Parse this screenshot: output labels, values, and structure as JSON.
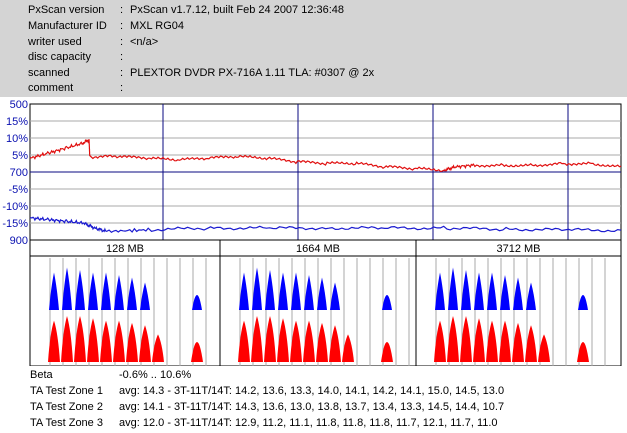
{
  "info": {
    "rows": [
      {
        "key": "PxScan version",
        "value": "PxScan v1.7.12, built Feb 24 2007 12:36:48"
      },
      {
        "key": "Manufacturer ID",
        "value": "MXL RG04"
      },
      {
        "key": "writer used",
        "value": "<n/a>"
      },
      {
        "key": "disc capacity",
        "value": ""
      },
      {
        "key": "scanned",
        "value": "PLEXTOR DVDR PX-716A 1.11 TLA: #0307 @ 2x"
      },
      {
        "key": "comment",
        "value": ""
      }
    ]
  },
  "colors": {
    "beta": "#e01010",
    "jitter": "#1a1ad0",
    "grid_major": "#0a0a80",
    "grid_minor": "#a8a8a8",
    "ta_blue": "#0000ff",
    "ta_red": "#ff0000"
  },
  "chart_data": [
    {
      "type": "line",
      "y_ticks_left": [
        "500",
        "15%",
        "10%",
        "5%",
        "700",
        "-5%",
        "-10%",
        "-15%",
        "900"
      ],
      "ylim_percent": [
        -20,
        20
      ],
      "zone_labels": [
        "128 MB",
        "1664 MB",
        "3712 MB"
      ],
      "series": [
        {
          "color": "red",
          "x": [
            0,
            0.03,
            0.06,
            0.09,
            0.1,
            0.101,
            0.15,
            0.2,
            0.25,
            0.3,
            0.35,
            0.4,
            0.45,
            0.5,
            0.55,
            0.6,
            0.65,
            0.7,
            0.72,
            0.75,
            0.8,
            0.85,
            0.9,
            0.95,
            1.0
          ],
          "values": [
            4,
            5.5,
            7,
            8.5,
            9.5,
            4.5,
            4.5,
            4,
            3.5,
            4,
            4.5,
            4,
            3,
            2.5,
            2.5,
            1.5,
            1,
            0.5,
            1.5,
            2,
            2,
            2,
            2.5,
            2.5,
            1.5
          ]
        },
        {
          "color": "blue",
          "x": [
            0,
            0.03,
            0.06,
            0.09,
            0.11,
            0.13,
            0.2,
            0.3,
            0.4,
            0.5,
            0.6,
            0.7,
            0.8,
            0.9,
            1.0
          ],
          "values": [
            -13.5,
            -14,
            -14.5,
            -15,
            -16.5,
            -17.5,
            -17,
            -16.5,
            -16.5,
            -16.5,
            -16.5,
            -16.5,
            -16.8,
            -17,
            -17.2
          ]
        }
      ]
    },
    {
      "type": "bar",
      "description": "TA test zone histograms",
      "zones": [
        {
          "blue_peaks": [
            0.75,
            0.85,
            0.8,
            0.75,
            0.75,
            0.7,
            0.65,
            0.55,
            0.45,
            0.3
          ],
          "red_peaks": [
            0.9,
            1.0,
            1.0,
            0.95,
            0.9,
            0.9,
            0.85,
            0.8,
            0.6,
            0.45
          ]
        },
        {
          "blue_peaks": [
            0.75,
            0.85,
            0.8,
            0.75,
            0.75,
            0.7,
            0.65,
            0.55,
            0.45,
            0.3
          ],
          "red_peaks": [
            0.9,
            1.0,
            1.0,
            0.95,
            0.9,
            0.9,
            0.85,
            0.8,
            0.6,
            0.45
          ]
        },
        {
          "blue_peaks": [
            0.75,
            0.85,
            0.8,
            0.75,
            0.75,
            0.7,
            0.65,
            0.55,
            0.45,
            0.3
          ],
          "red_peaks": [
            0.9,
            1.0,
            1.0,
            0.95,
            0.9,
            0.9,
            0.85,
            0.8,
            0.6,
            0.45
          ]
        }
      ]
    }
  ],
  "results": {
    "beta_label": "Beta",
    "beta_value": "-0.6% .. 10.6%",
    "zones": [
      {
        "label": "TA Test Zone 1",
        "value": "avg: 14.3 - 3T-11T/14T: 14.2, 13.6, 13.3, 14.0, 14.1, 14.2, 14.1, 15.0, 14.5, 13.0"
      },
      {
        "label": "TA Test Zone 2",
        "value": "avg: 14.1 - 3T-11T/14T: 14.3, 13.6, 13.0, 13.8, 13.7, 13.4, 13.3, 14.5, 14.4, 10.7"
      },
      {
        "label": "TA Test Zone 3",
        "value": "avg: 12.0 - 3T-11T/14T: 12.9, 11.2, 11.1, 11.8, 11.8, 11.8, 11.7, 12.1, 11.7, 11.0"
      }
    ]
  }
}
